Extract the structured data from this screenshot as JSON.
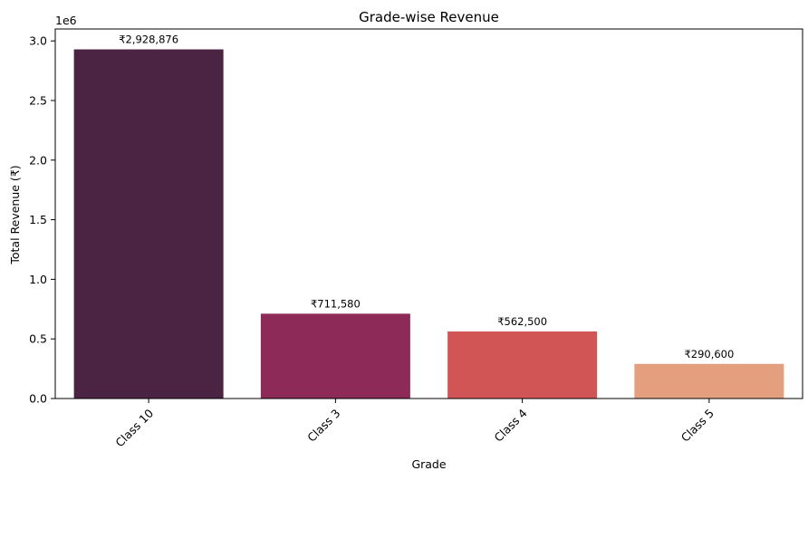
{
  "chart_data": {
    "type": "bar",
    "title": "Grade-wise Revenue",
    "xlabel": "Grade",
    "ylabel": "Total Revenue (₹)",
    "y_offset_label": "1e6",
    "ylim": [
      0,
      3.1
    ],
    "y_ticks": [
      0.0,
      0.5,
      1.0,
      1.5,
      2.0,
      2.5,
      3.0
    ],
    "y_tick_labels": [
      "0.0",
      "0.5",
      "1.0",
      "1.5",
      "2.0",
      "2.5",
      "3.0"
    ],
    "categories": [
      "Class 10",
      "Class 3",
      "Class 4",
      "Class 5"
    ],
    "values": [
      2928876,
      711580,
      562500,
      290600
    ],
    "data_labels": [
      "₹2,928,876",
      "₹711,580",
      "₹562,500",
      "₹290,600"
    ],
    "colors": [
      "#4a2442",
      "#8d2a58",
      "#d25556",
      "#e4a07e"
    ],
    "grid": false,
    "legend": "none"
  }
}
